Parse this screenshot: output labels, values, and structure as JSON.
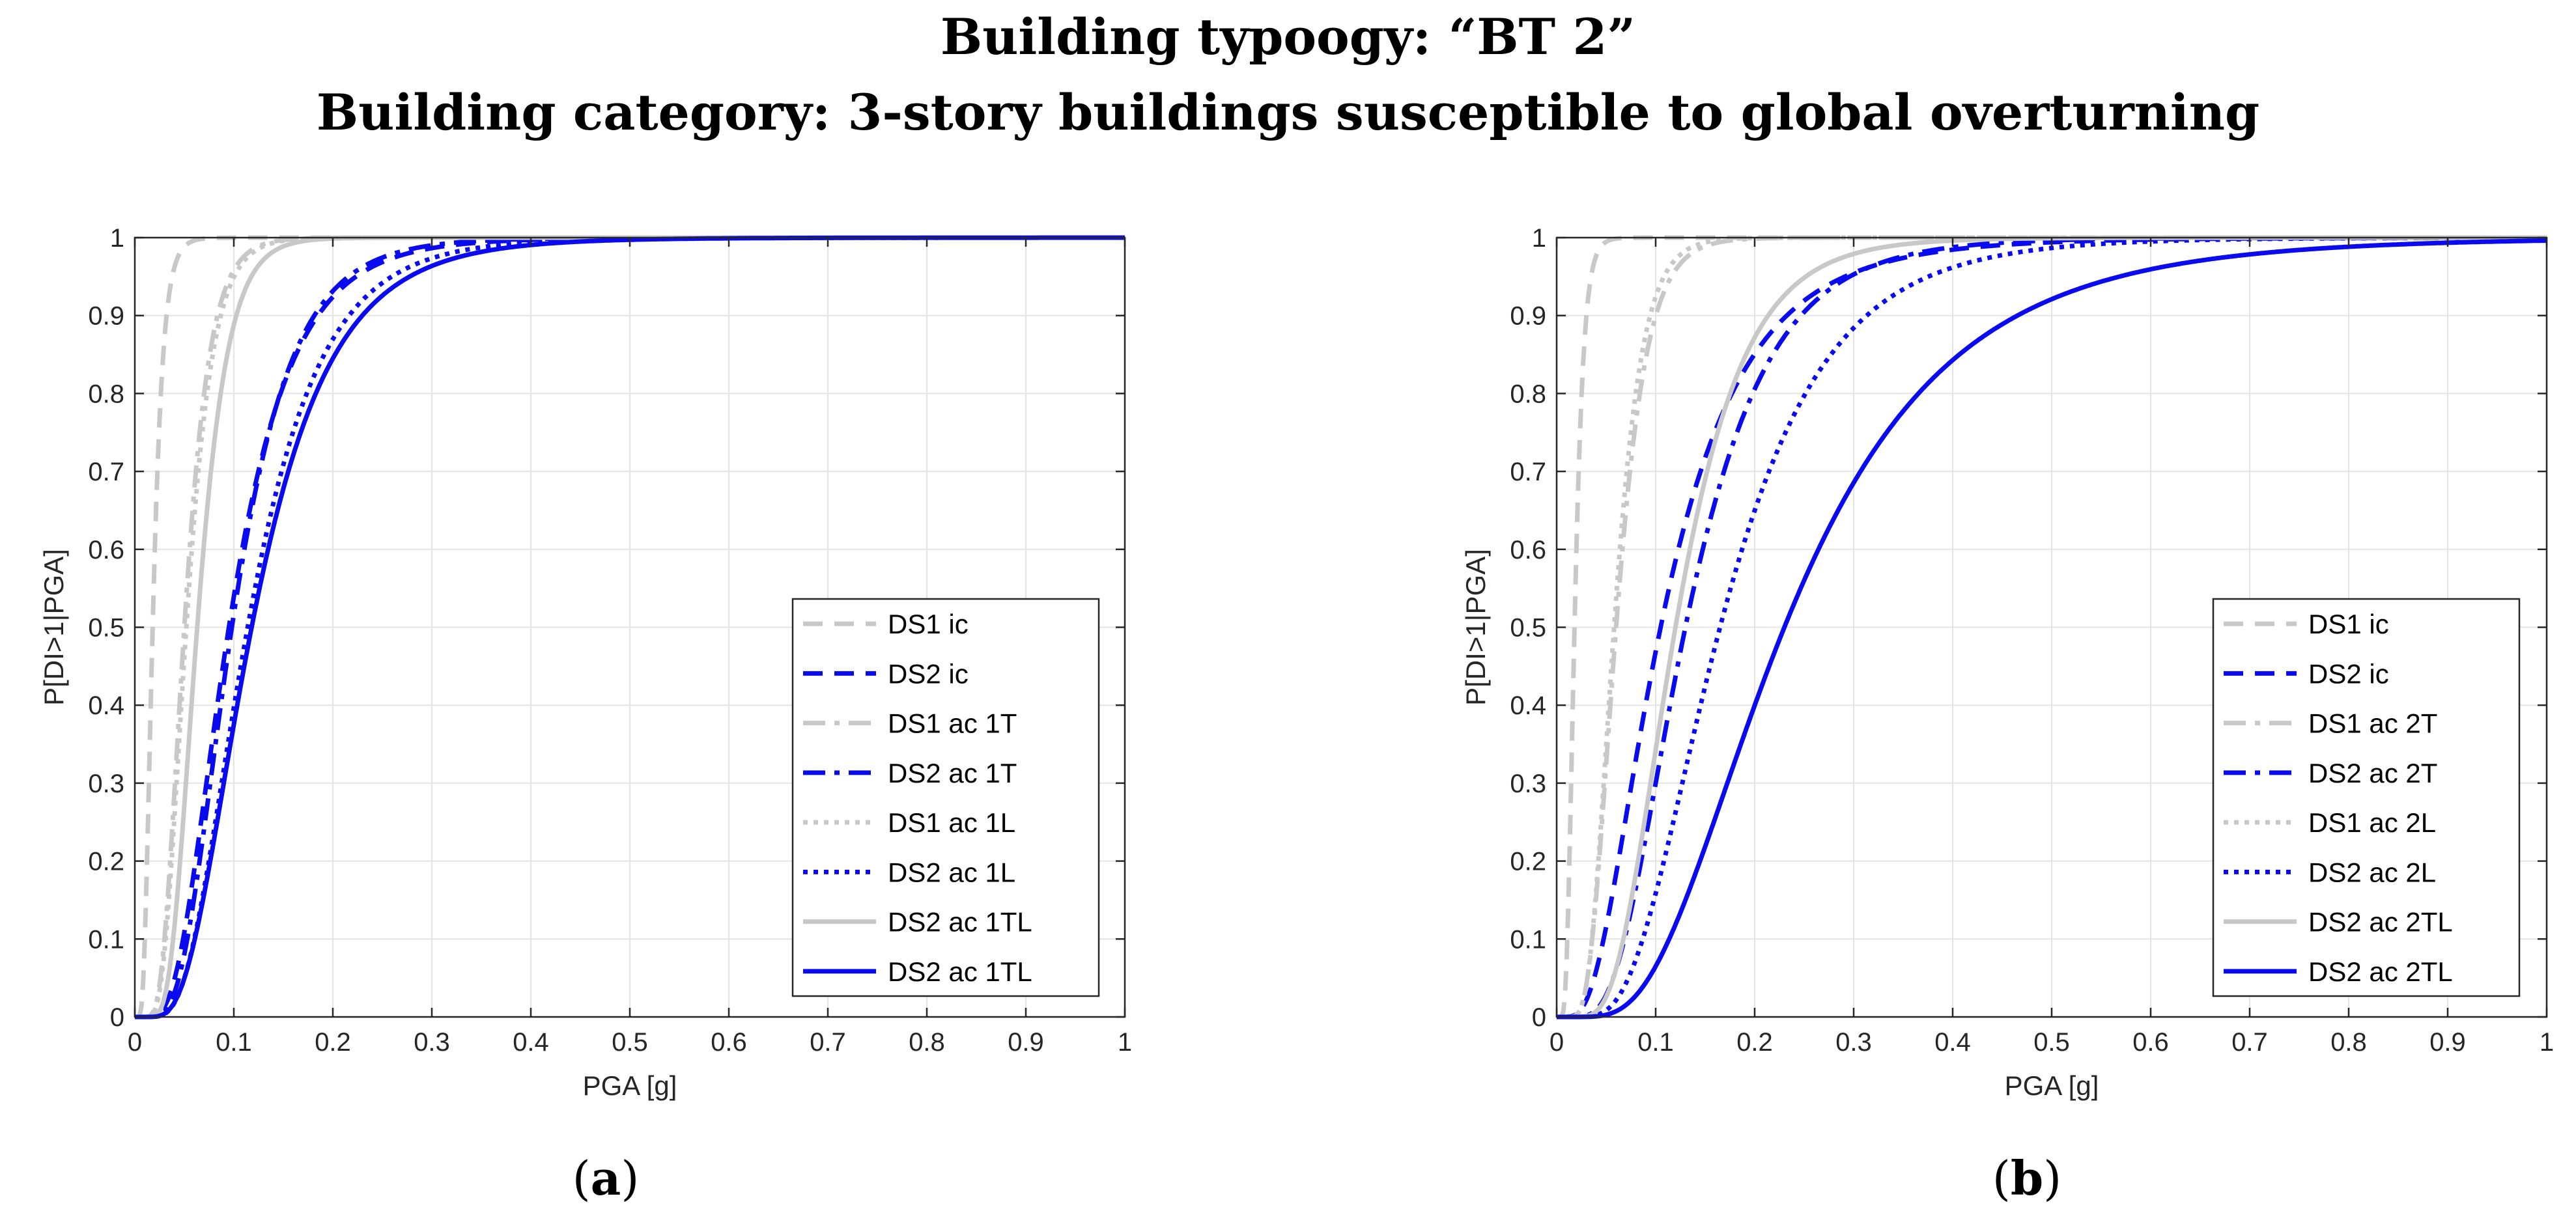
{
  "title": {
    "line1": "Building typoogy: “BT 2”",
    "line2": "Building category: 3-story buildings susceptible to global overturning"
  },
  "colors": {
    "gray": "#c8c8c8",
    "blue": "#0a0af0",
    "grid": "#e4e4e4",
    "axis": "#262626"
  },
  "chart_data": [
    {
      "type": "line",
      "panel_label": "a",
      "xlabel": "PGA [g]",
      "ylabel": "P[DI>1|PGA]",
      "xlim": [
        0,
        1
      ],
      "ylim": [
        0,
        1
      ],
      "xticks": [
        "0",
        "0.1",
        "0.2",
        "0.3",
        "0.4",
        "0.5",
        "0.6",
        "0.7",
        "0.8",
        "0.9",
        "1"
      ],
      "yticks": [
        "0",
        "0.1",
        "0.2",
        "0.3",
        "0.4",
        "0.5",
        "0.6",
        "0.7",
        "0.8",
        "0.9",
        "1"
      ],
      "grid": true,
      "legend_position": "bottom-right",
      "series": [
        {
          "name": "DS1 ic",
          "color": "gray",
          "style": "dashed",
          "median": 0.018,
          "beta": 0.45
        },
        {
          "name": "DS2 ic",
          "color": "blue",
          "style": "dashed",
          "median": 0.095,
          "beta": 0.52
        },
        {
          "name": "DS1 ac 1T",
          "color": "gray",
          "style": "dashdot",
          "median": 0.05,
          "beta": 0.4
        },
        {
          "name": "DS2 ac 1T",
          "color": "blue",
          "style": "dashdot",
          "median": 0.098,
          "beta": 0.48
        },
        {
          "name": "DS1 ac 1L",
          "color": "gray",
          "style": "dotted",
          "median": 0.052,
          "beta": 0.4
        },
        {
          "name": "DS2 ac 1L",
          "color": "blue",
          "style": "dotted",
          "median": 0.114,
          "beta": 0.5
        },
        {
          "name": "DS2 ac 1TL",
          "color": "gray",
          "style": "solid",
          "median": 0.063,
          "beta": 0.38
        },
        {
          "name": "DS2 ac 1TL",
          "color": "blue",
          "style": "solid",
          "median": 0.118,
          "beta": 0.52
        }
      ]
    },
    {
      "type": "line",
      "panel_label": "b",
      "xlabel": "PGA [g]",
      "ylabel": "P[DI>1|PGA]",
      "xlim": [
        0,
        1
      ],
      "ylim": [
        0,
        1
      ],
      "xticks": [
        "0",
        "0.1",
        "0.2",
        "0.3",
        "0.4",
        "0.5",
        "0.6",
        "0.7",
        "0.8",
        "0.9",
        "1"
      ],
      "yticks": [
        "0",
        "0.1",
        "0.2",
        "0.3",
        "0.4",
        "0.5",
        "0.6",
        "0.7",
        "0.8",
        "0.9",
        "1"
      ],
      "grid": true,
      "legend_position": "bottom-right",
      "series": [
        {
          "name": "DS1 ic",
          "color": "gray",
          "style": "dashed",
          "median": 0.018,
          "beta": 0.4
        },
        {
          "name": "DS2 ic",
          "color": "blue",
          "style": "dashed",
          "median": 0.105,
          "beta": 0.62
        },
        {
          "name": "DS1 ac 2T",
          "color": "gray",
          "style": "dashdot",
          "median": 0.06,
          "beta": 0.4
        },
        {
          "name": "DS2 ac 2T",
          "color": "blue",
          "style": "dashdot",
          "median": 0.13,
          "beta": 0.5
        },
        {
          "name": "DS1 ac 2L",
          "color": "gray",
          "style": "dotted",
          "median": 0.058,
          "beta": 0.38
        },
        {
          "name": "DS2 ac 2L",
          "color": "blue",
          "style": "dotted",
          "median": 0.165,
          "beta": 0.5
        },
        {
          "name": "DS2 ac 2TL",
          "color": "gray",
          "style": "solid",
          "median": 0.12,
          "beta": 0.45
        },
        {
          "name": "DS2 ac 2TL",
          "color": "blue",
          "style": "solid",
          "median": 0.23,
          "beta": 0.55
        }
      ]
    }
  ]
}
